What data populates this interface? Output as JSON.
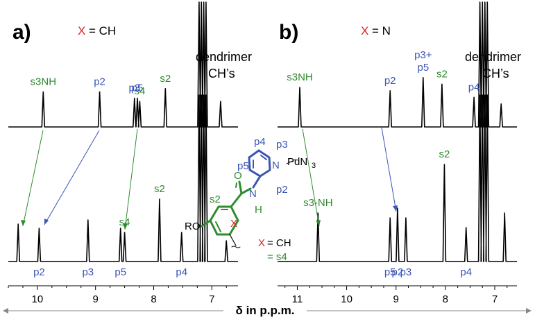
{
  "chart_data": [
    {
      "type": "line",
      "panel": "a)",
      "x_label_prefix": "X",
      "x_label_suffix": "= CH",
      "xlabel": "δ in p.p.m.",
      "xlim": [
        10.5,
        6.55
      ],
      "ticks": [
        "10",
        "9",
        "8",
        "7"
      ],
      "tick_values": [
        10,
        9,
        8,
        7
      ],
      "dendrimer_label": [
        "dendrimer",
        "CH’s"
      ],
      "series": [
        {
          "peaks": [
            {
              "label": "s3NH",
              "ppm": 9.9,
              "h": 0.55,
              "color": "green"
            },
            {
              "label": "p2",
              "ppm": 8.93,
              "h": 0.55,
              "color": "blue"
            },
            {
              "label": "p3",
              "ppm": 8.33,
              "h": 0.45,
              "color": "blue"
            },
            {
              "label": "p5",
              "ppm": 8.28,
              "h": 0.45,
              "color": "blue"
            },
            {
              "label": "s4",
              "ppm": 8.24,
              "h": 0.4,
              "color": "green"
            },
            {
              "label": "s2",
              "ppm": 7.8,
              "h": 0.6,
              "color": "green"
            },
            {
              "label": "",
              "ppm": 6.85,
              "h": 0.4,
              "color": "black"
            }
          ]
        },
        {
          "peaks": [
            {
              "label": "",
              "ppm": 10.33,
              "h": 0.45,
              "color": "green"
            },
            {
              "label": "p2",
              "ppm": 9.97,
              "h": 0.4,
              "color": "blue"
            },
            {
              "label": "p3",
              "ppm": 9.13,
              "h": 0.5,
              "color": "blue"
            },
            {
              "label": "p5",
              "ppm": 8.57,
              "h": 0.4,
              "color": "blue"
            },
            {
              "label": "s4",
              "ppm": 8.5,
              "h": 0.35,
              "color": "green"
            },
            {
              "label": "s2",
              "ppm": 7.9,
              "h": 0.75,
              "color": "green"
            },
            {
              "label": "p4",
              "ppm": 7.52,
              "h": 0.35,
              "color": "blue"
            },
            {
              "label": "",
              "ppm": 6.75,
              "h": 0.25,
              "color": "black"
            }
          ]
        }
      ]
    },
    {
      "type": "line",
      "panel": "b)",
      "x_label_prefix": "X",
      "x_label_suffix": "= N",
      "xlabel": "δ in p.p.m.",
      "xlim": [
        11.4,
        6.55
      ],
      "ticks": [
        "11",
        "10",
        "9",
        "8",
        "7"
      ],
      "tick_values": [
        11,
        10,
        9,
        8,
        7
      ],
      "dendrimer_label": [
        "dendrimer",
        "CH’s"
      ],
      "series": [
        {
          "peaks": [
            {
              "label": "s3NH",
              "ppm": 10.95,
              "h": 0.6,
              "color": "green"
            },
            {
              "label": "p2",
              "ppm": 9.12,
              "h": 0.55,
              "color": "blue"
            },
            {
              "label": "p3+ p5",
              "ppm": 8.45,
              "h": 0.75,
              "color": "blue"
            },
            {
              "label": "s2",
              "ppm": 8.07,
              "h": 0.65,
              "color": "green"
            },
            {
              "label": "p4",
              "ppm": 7.42,
              "h": 0.45,
              "color": "blue"
            },
            {
              "label": "",
              "ppm": 6.87,
              "h": 0.35,
              "color": "black"
            }
          ]
        },
        {
          "peaks": [
            {
              "label": "s3-NH",
              "ppm": 10.58,
              "h": 0.5,
              "color": "green"
            },
            {
              "label": "p5",
              "ppm": 9.12,
              "h": 0.45,
              "color": "blue"
            },
            {
              "label": "p2",
              "ppm": 8.97,
              "h": 0.55,
              "color": "blue"
            },
            {
              "label": "p3",
              "ppm": 8.8,
              "h": 0.45,
              "color": "blue"
            },
            {
              "label": "s2",
              "ppm": 8.02,
              "h": 1.0,
              "color": "green"
            },
            {
              "label": "p4",
              "ppm": 7.58,
              "h": 0.35,
              "color": "blue"
            },
            {
              "label": "",
              "ppm": 6.8,
              "h": 0.5,
              "color": "black"
            }
          ]
        }
      ]
    }
  ],
  "structure": {
    "p4": "p4",
    "p3": "p3",
    "p5": "p5",
    "p2": "p2",
    "pd": "PdN",
    "pd_sub": "3",
    "n_ring": "N",
    "n_amide": "N",
    "h_amide": "H",
    "o_carbonyl": "O",
    "s2": "s2",
    "ro": "RO",
    "x": "X",
    "legend_prefix": "X",
    "legend_ch": "= CH",
    "legend_s4": "= s4"
  },
  "colors": {
    "green": "#2e8b2e",
    "blue": "#3a55b5",
    "red": "#e02020",
    "black": "#000000"
  }
}
